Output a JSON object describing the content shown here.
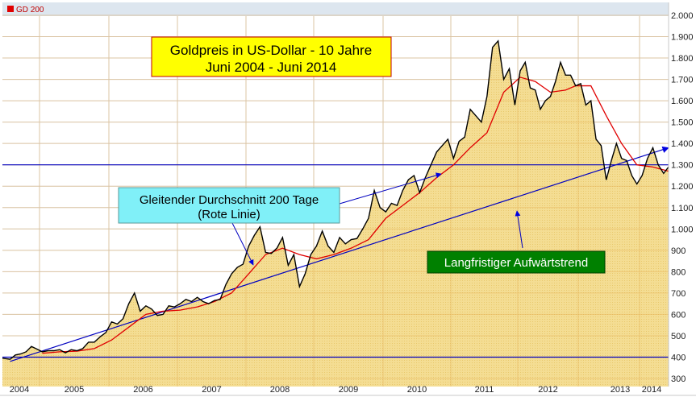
{
  "legend": {
    "label": "GD 200",
    "color": "#e00000"
  },
  "chart_data": {
    "type": "area",
    "title": "Goldpreis in US-Dollar - 10 Jahre",
    "subtitle": "Juni 2004 - Juni 2014",
    "ylim": [
      300,
      2000
    ],
    "y_tick_labels": [
      "2.000",
      "1.900",
      "1.800",
      "1.700",
      "1.600",
      "1.500",
      "1.400",
      "1.300",
      "1.200",
      "1.100",
      "1.000",
      "900",
      "800",
      "700",
      "600",
      "500",
      "400",
      "300"
    ],
    "y_tick_values": [
      2000,
      1900,
      1800,
      1700,
      1600,
      1500,
      1400,
      1300,
      1200,
      1100,
      1000,
      900,
      800,
      700,
      600,
      500,
      400,
      300
    ],
    "x_tick_labels": [
      "2004",
      "2005",
      "2006",
      "2007",
      "2008",
      "2009",
      "2010",
      "2011",
      "2012",
      "2013",
      "2014"
    ],
    "grid": true,
    "series": [
      {
        "role": "price",
        "color": "#000000",
        "fill": "#f2d98c",
        "x": [
          "2004-06",
          "2004-07",
          "2004-08",
          "2004-09",
          "2004-10",
          "2004-11",
          "2004-12",
          "2005-01",
          "2005-02",
          "2005-03",
          "2005-04",
          "2005-05",
          "2005-06",
          "2005-07",
          "2005-08",
          "2005-09",
          "2005-10",
          "2005-11",
          "2005-12",
          "2006-01",
          "2006-02",
          "2006-03",
          "2006-04",
          "2006-05",
          "2006-06",
          "2006-07",
          "2006-08",
          "2006-09",
          "2006-10",
          "2006-11",
          "2006-12",
          "2007-01",
          "2007-02",
          "2007-03",
          "2007-04",
          "2007-05",
          "2007-06",
          "2007-07",
          "2007-08",
          "2007-09",
          "2007-10",
          "2007-11",
          "2007-12",
          "2008-01",
          "2008-02",
          "2008-03",
          "2008-04",
          "2008-05",
          "2008-06",
          "2008-07",
          "2008-08",
          "2008-09",
          "2008-10",
          "2008-11",
          "2008-12",
          "2009-01",
          "2009-02",
          "2009-03",
          "2009-04",
          "2009-05",
          "2009-06",
          "2009-07",
          "2009-08",
          "2009-09",
          "2009-10",
          "2009-11",
          "2009-12",
          "2010-01",
          "2010-02",
          "2010-03",
          "2010-04",
          "2010-05",
          "2010-06",
          "2010-07",
          "2010-08",
          "2010-09",
          "2010-10",
          "2010-11",
          "2010-12",
          "2011-01",
          "2011-02",
          "2011-03",
          "2011-04",
          "2011-05",
          "2011-06",
          "2011-07",
          "2011-08",
          "2011-09",
          "2011-10",
          "2011-11",
          "2011-12",
          "2012-01",
          "2012-02",
          "2012-03",
          "2012-04",
          "2012-05",
          "2012-06",
          "2012-07",
          "2012-08",
          "2012-09",
          "2012-10",
          "2012-11",
          "2012-12",
          "2013-01",
          "2013-02",
          "2013-03",
          "2013-04",
          "2013-05",
          "2013-06",
          "2013-07",
          "2013-08",
          "2013-09",
          "2013-10",
          "2013-11",
          "2013-12",
          "2014-01",
          "2014-02",
          "2014-03",
          "2014-04",
          "2014-05",
          "2014-06"
        ],
        "values": [
          395,
          390,
          410,
          415,
          425,
          450,
          438,
          425,
          430,
          430,
          435,
          420,
          435,
          430,
          440,
          470,
          470,
          495,
          515,
          565,
          555,
          580,
          650,
          700,
          615,
          640,
          625,
          595,
          600,
          640,
          635,
          650,
          670,
          660,
          680,
          660,
          650,
          665,
          670,
          740,
          790,
          820,
          835,
          920,
          970,
          1010,
          890,
          885,
          910,
          960,
          830,
          880,
          730,
          790,
          880,
          920,
          990,
          920,
          890,
          960,
          930,
          950,
          955,
          1000,
          1050,
          1180,
          1100,
          1080,
          1120,
          1110,
          1180,
          1230,
          1250,
          1170,
          1240,
          1300,
          1360,
          1390,
          1420,
          1330,
          1410,
          1430,
          1560,
          1530,
          1500,
          1620,
          1850,
          1880,
          1700,
          1750,
          1580,
          1740,
          1780,
          1660,
          1650,
          1560,
          1600,
          1620,
          1690,
          1780,
          1720,
          1720,
          1670,
          1680,
          1580,
          1600,
          1420,
          1390,
          1230,
          1320,
          1400,
          1330,
          1320,
          1250,
          1210,
          1250,
          1330,
          1380,
          1300,
          1260,
          1290
        ]
      },
      {
        "role": "moving-average-200",
        "color": "#e00000",
        "x": [
          "2005-01",
          "2005-04",
          "2005-07",
          "2005-10",
          "2006-01",
          "2006-04",
          "2006-07",
          "2006-10",
          "2007-01",
          "2007-04",
          "2007-07",
          "2007-10",
          "2008-01",
          "2008-04",
          "2008-07",
          "2008-10",
          "2009-01",
          "2009-04",
          "2009-07",
          "2009-10",
          "2010-01",
          "2010-04",
          "2010-07",
          "2010-10",
          "2011-01",
          "2011-04",
          "2011-07",
          "2011-10",
          "2012-01",
          "2012-04",
          "2012-07",
          "2012-10",
          "2012-12",
          "2013-03",
          "2013-06",
          "2013-09",
          "2013-12",
          "2014-03",
          "2014-06"
        ],
        "values": [
          418,
          425,
          428,
          440,
          480,
          540,
          600,
          615,
          620,
          635,
          660,
          700,
          790,
          880,
          910,
          880,
          860,
          880,
          910,
          950,
          1050,
          1110,
          1170,
          1240,
          1300,
          1380,
          1450,
          1640,
          1710,
          1690,
          1640,
          1650,
          1670,
          1670,
          1530,
          1400,
          1300,
          1290,
          1270
        ]
      }
    ],
    "reference_lines": [
      {
        "type": "horizontal",
        "value": 1300,
        "color": "#0000c0"
      },
      {
        "type": "horizontal",
        "value": 400,
        "color": "#0000c0"
      },
      {
        "type": "trendline",
        "from": [
          "2004-07",
          380
        ],
        "to": [
          "2014-06",
          1380
        ],
        "color": "#0000c0"
      }
    ],
    "annotations": [
      {
        "text_line1": "Gleitender Durchschnitt 200 Tage",
        "text_line2": "(Rote Linie)",
        "background": "#80f0f8"
      },
      {
        "text": "Langfristiger Aufwärtstrend",
        "background": "#008000",
        "color": "#ffffff"
      }
    ],
    "title_box_background": "#ffff00"
  }
}
